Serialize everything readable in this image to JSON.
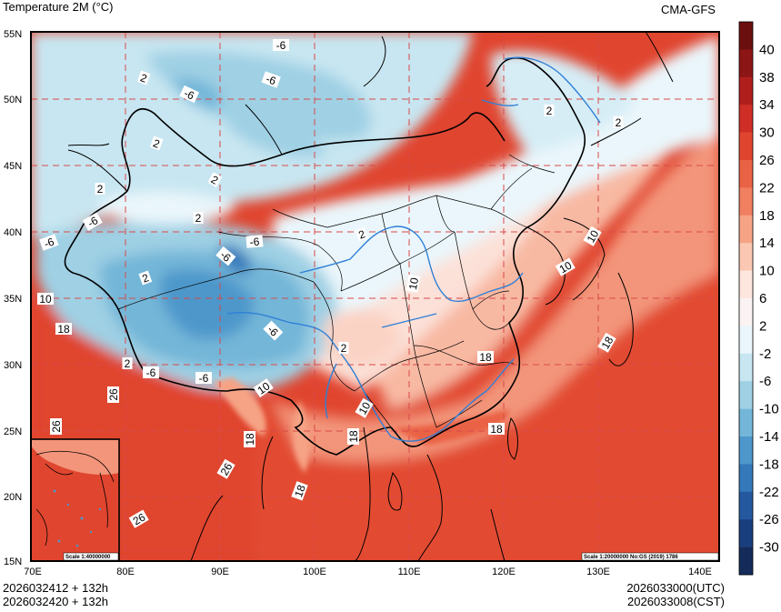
{
  "header": {
    "title": "Temperature  2M (°C)",
    "model": "CMA-GFS"
  },
  "footer": {
    "init_utc_line": "2026032412 + 132h",
    "init_cst_line": "2026032420 + 132h",
    "valid_utc": "2026033000(UTC)",
    "valid_cst": "2026033008(CST)"
  },
  "axes": {
    "lat_labels": [
      "55N",
      "50N",
      "45N",
      "40N",
      "35N",
      "30N",
      "25N",
      "20N",
      "15N"
    ],
    "lon_labels": [
      "70E",
      "80E",
      "90E",
      "100E",
      "110E",
      "120E",
      "130E",
      "140E"
    ]
  },
  "colorbar": {
    "labels": [
      "40",
      "38",
      "34",
      "30",
      "26",
      "22",
      "18",
      "14",
      "10",
      "6",
      "2",
      "-2",
      "-6",
      "-10",
      "-14",
      "-18",
      "-22",
      "-26",
      "-30"
    ],
    "colors": [
      "#6b0f0f",
      "#8c1515",
      "#b01f1c",
      "#cf2e26",
      "#e0452f",
      "#ea6245",
      "#f08060",
      "#f6a385",
      "#fac7b3",
      "#fde6de",
      "#fbf3f3",
      "#eaf6fb",
      "#c7e6f1",
      "#9fd0e4",
      "#73b6d8",
      "#4d97cb",
      "#3579ba",
      "#24599f",
      "#1a3f7e",
      "#152b5a"
    ]
  },
  "scales": {
    "inset": "Scale 1:40000000",
    "main": "Scale 1:20000000 No:GS (2019) 1786"
  },
  "contour_labels": [
    {
      "t": "-6"
    },
    {
      "t": "-6"
    },
    {
      "t": "2"
    },
    {
      "t": "-6"
    },
    {
      "t": "2"
    },
    {
      "t": "2"
    },
    {
      "t": "2"
    },
    {
      "t": "2"
    },
    {
      "t": "-6"
    },
    {
      "t": "-6"
    },
    {
      "t": "-6"
    },
    {
      "t": "-6"
    },
    {
      "t": "2"
    },
    {
      "t": "2"
    },
    {
      "t": "10"
    },
    {
      "t": "18"
    },
    {
      "t": "-6"
    },
    {
      "t": "2"
    },
    {
      "t": "-6"
    },
    {
      "t": "-6"
    },
    {
      "t": "10"
    },
    {
      "t": "2"
    },
    {
      "t": "26"
    },
    {
      "t": "26"
    },
    {
      "t": "18"
    },
    {
      "t": "26"
    },
    {
      "t": "18"
    },
    {
      "t": "26"
    },
    {
      "t": "10"
    },
    {
      "t": "18"
    },
    {
      "t": "10"
    },
    {
      "t": "18"
    },
    {
      "t": "18"
    },
    {
      "t": "10"
    },
    {
      "t": "10"
    },
    {
      "t": "2"
    },
    {
      "t": "2"
    },
    {
      "t": "18"
    }
  ]
}
